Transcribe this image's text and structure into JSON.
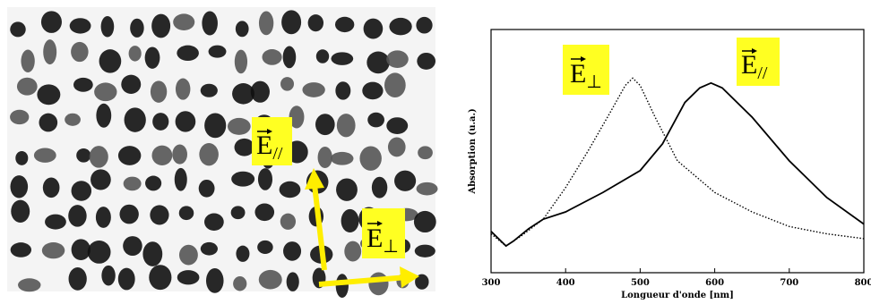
{
  "micrograph": {
    "labels": [
      {
        "symbol": "E",
        "subscript": "//"
      },
      {
        "symbol": "E",
        "subscript": "⊥"
      }
    ]
  },
  "chart_data": {
    "type": "line",
    "xlabel": "Longueur d'onde [nm]",
    "ylabel": "Absorption (u.a.)",
    "xlim": [
      300,
      800
    ],
    "xticks": [
      300,
      400,
      500,
      600,
      700,
      800
    ],
    "ylim": [
      0,
      1
    ],
    "annotations": [
      {
        "symbol": "E",
        "subscript": "⊥"
      },
      {
        "symbol": "E",
        "subscript": "//"
      }
    ],
    "series": [
      {
        "color": "#000000",
        "dash": "solid",
        "x": [
          300,
          320,
          330,
          350,
          370,
          400,
          450,
          500,
          530,
          560,
          580,
          595,
          610,
          650,
          700,
          750,
          800
        ],
        "values": [
          0.17,
          0.11,
          0.13,
          0.18,
          0.22,
          0.25,
          0.33,
          0.42,
          0.53,
          0.7,
          0.76,
          0.78,
          0.76,
          0.64,
          0.46,
          0.31,
          0.2
        ]
      },
      {
        "color": "#000000",
        "dash": "dotted",
        "x": [
          300,
          320,
          340,
          370,
          400,
          430,
          460,
          480,
          490,
          500,
          520,
          550,
          600,
          650,
          700,
          750,
          800
        ],
        "values": [
          0.16,
          0.11,
          0.15,
          0.22,
          0.35,
          0.5,
          0.66,
          0.77,
          0.8,
          0.77,
          0.64,
          0.46,
          0.33,
          0.25,
          0.19,
          0.16,
          0.14
        ]
      }
    ]
  }
}
